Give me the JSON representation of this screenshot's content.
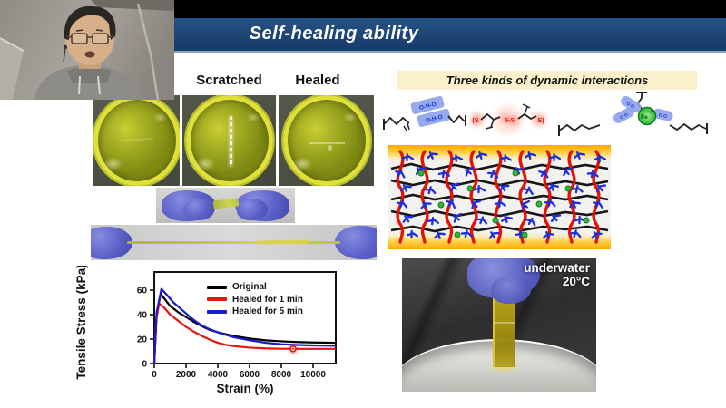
{
  "slide": {
    "title": "Self-healing ability",
    "petri_labels": {
      "scratched": "Scratched",
      "healed": "Healed"
    },
    "interactions": {
      "title": "Three kinds of dynamic interactions",
      "chem": {
        "o_h_o": "O-H-O",
        "o_pair": "O O",
        "s_left": "(S",
        "s_mid": "S-S",
        "s_right": "S)",
        "fe": "Fe",
        "fe_charge": "3+"
      }
    },
    "underwater": {
      "line1": "underwater",
      "line2": "20°C"
    }
  },
  "chart_data": {
    "type": "line",
    "title": "",
    "xlabel": "Strain (%)",
    "ylabel": "Tensile Stress (kPa)",
    "xlim": [
      0,
      11400
    ],
    "ylim": [
      0,
      75
    ],
    "xticks": [
      0,
      2000,
      4000,
      6000,
      8000,
      10000
    ],
    "yticks": [
      0,
      20,
      40,
      60
    ],
    "grid": false,
    "legend_position": "top-right",
    "series": [
      {
        "name": "Original",
        "color": "#000000",
        "x": [
          0,
          150,
          400,
          700,
          1000,
          1500,
          2000,
          2500,
          3000,
          3500,
          4000,
          5000,
          6000,
          7000,
          8000,
          9000,
          10000,
          11400
        ],
        "y": [
          0,
          40,
          57,
          52,
          47,
          42,
          38,
          34,
          30.5,
          27.5,
          25.5,
          22.5,
          20.5,
          19,
          18.2,
          17.6,
          17.2,
          17
        ]
      },
      {
        "name": "Healed for 1 min",
        "color": "#e8150d",
        "x": [
          0,
          120,
          300,
          600,
          1000,
          1500,
          2000,
          2500,
          3000,
          3500,
          4000,
          4500,
          5000,
          6000,
          7000,
          8000,
          9000,
          10000,
          11400
        ],
        "y": [
          0,
          35,
          49,
          46,
          40,
          35,
          30,
          26,
          22.5,
          19.5,
          17,
          15.3,
          14.2,
          13,
          12.4,
          12.1,
          12,
          12,
          12
        ]
      },
      {
        "name": "Healed for 5 min",
        "color": "#1a1acd",
        "x": [
          0,
          150,
          450,
          800,
          1200,
          1600,
          2000,
          2500,
          3000,
          3500,
          4000,
          5000,
          6000,
          7000,
          8000,
          9000,
          10000,
          11400
        ],
        "y": [
          0,
          42,
          61,
          56,
          50,
          45.5,
          41,
          35.5,
          31,
          28,
          25.5,
          21.5,
          19,
          17,
          15.8,
          15.2,
          14.8,
          14.5
        ]
      }
    ],
    "marker": {
      "x": 8740,
      "y": 12,
      "style": "red-circle-glow"
    }
  },
  "colors": {
    "title_bar": "#1c4273",
    "header_box": "#faf0cc",
    "network_red": "#e61200",
    "network_blue": "#1b2fe0",
    "network_green": "#37b537",
    "glove_blue": "#5a5fc8",
    "gel_yellow": "#d6d844"
  }
}
